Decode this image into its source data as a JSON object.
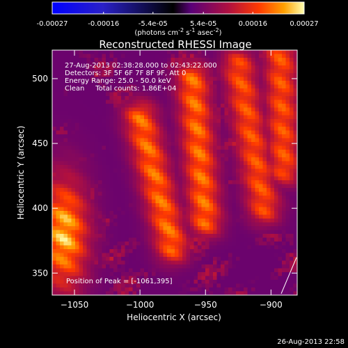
{
  "chart_data": {
    "type": "heatmap",
    "title": "Reconstructed RHESSI Image",
    "xlabel": "Heliocentric X (arcsec)",
    "ylabel": "Heliocentric Y (arcsec)",
    "xlim": [
      -1067,
      -880
    ],
    "ylim": [
      333,
      522
    ],
    "x_ticks": [
      -1050,
      -1000,
      -950,
      -900
    ],
    "y_ticks": [
      350,
      400,
      450,
      500
    ],
    "colorbar": {
      "min": -0.00027,
      "max": 0.00027,
      "tick_values": [
        -0.00027,
        -0.00016,
        -5.4e-05,
        5.4e-05,
        0.00016,
        0.00027
      ],
      "tick_labels": [
        "-0.00027",
        "-0.00016",
        "-5.4e-05",
        "5.4e-05",
        "0.00016",
        "0.00027"
      ],
      "unit_label": "(photons cm-2 s-1 asec-2)",
      "colors": [
        "#0000ff",
        "#2a20c8",
        "#000000",
        "#5a0078",
        "#b01040",
        "#ff3a00",
        "#ffa000",
        "#ffffb0"
      ]
    },
    "annotations": [
      "27-Aug-2013 02:38:28.000 to 02:43:22.000",
      "Detectors: 3F 5F 6F 7F 8F 9F, Att 0",
      "Energy Range: 25.0 - 50.0 keV",
      "Clean     Total counts: 1.86E+04"
    ],
    "peak_label": "Position of Peak = [-1061,395]",
    "timestamp": "26-Aug-2013 22:58",
    "bright_bands": [
      {
        "name": "limb-source",
        "x_center": -1058,
        "y_center": 380,
        "peak_value": 0.00027
      },
      {
        "name": "band-1",
        "x_start": -975,
        "y_start": 370,
        "x_end": -1000,
        "y_end": 470,
        "peak_value": 0.00022
      },
      {
        "name": "band-2",
        "x_start": -950,
        "y_start": 390,
        "x_end": -960,
        "y_end": 500,
        "peak_value": 0.00022
      },
      {
        "name": "band-3",
        "x_start": -905,
        "y_start": 400,
        "x_end": -925,
        "y_end": 510,
        "peak_value": 0.0002
      },
      {
        "name": "band-4",
        "x_start": -890,
        "y_start": 430,
        "x_end": -893,
        "y_end": 520,
        "peak_value": 0.0002
      }
    ]
  }
}
